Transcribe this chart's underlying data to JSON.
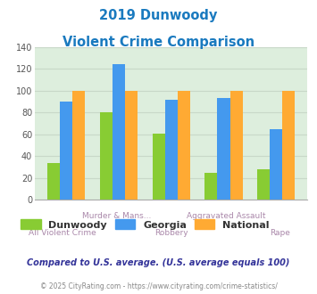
{
  "title_line1": "2019 Dunwoody",
  "title_line2": "Violent Crime Comparison",
  "title_color": "#1a7abf",
  "dunwoody_values": [
    34,
    80,
    61,
    25,
    28
  ],
  "georgia_values": [
    90,
    124,
    92,
    93,
    65
  ],
  "national_values": [
    100,
    100,
    100,
    100,
    100
  ],
  "dunwoody_color": "#88cc33",
  "georgia_color": "#4499ee",
  "national_color": "#ffaa33",
  "ylim": [
    0,
    140
  ],
  "yticks": [
    0,
    20,
    40,
    60,
    80,
    100,
    120,
    140
  ],
  "grid_color": "#c8d8c8",
  "plot_bg": "#ddeedd",
  "legend_labels": [
    "Dunwoody",
    "Georgia",
    "National"
  ],
  "xlabels_top": [
    "",
    "Murder & Mans...",
    "",
    "Aggravated Assault",
    ""
  ],
  "xlabels_bottom": [
    "All Violent Crime",
    "",
    "Robbery",
    "",
    "Rape"
  ],
  "xlabel_color": "#aa88aa",
  "footnote1": "Compared to U.S. average. (U.S. average equals 100)",
  "footnote2": "© 2025 CityRating.com - https://www.cityrating.com/crime-statistics/",
  "footnote1_color": "#333399",
  "footnote2_color": "#888888",
  "footnote2_url_color": "#4499ee",
  "bar_width": 0.24
}
